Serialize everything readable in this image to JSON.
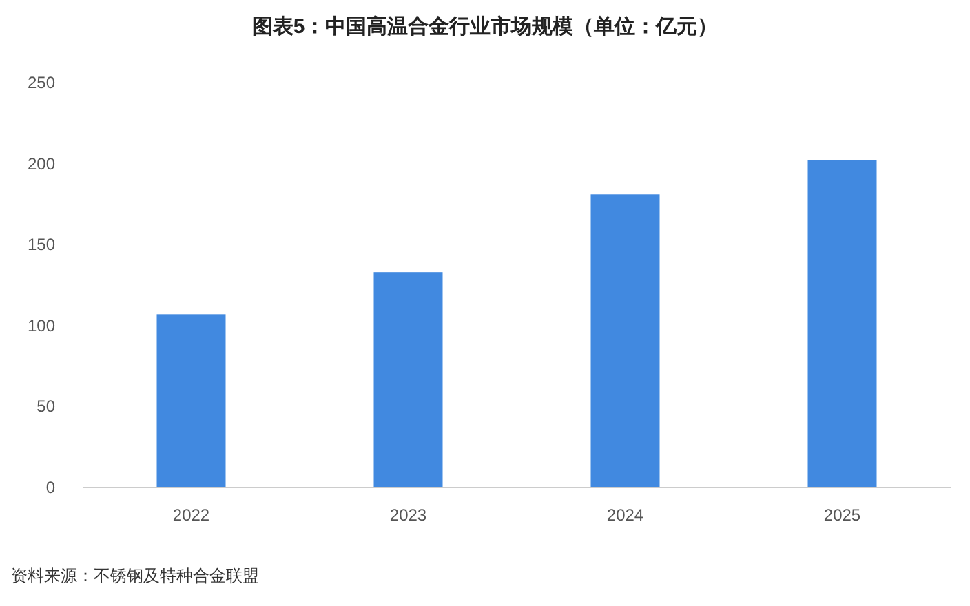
{
  "chart_data": {
    "type": "bar",
    "title": "图表5：中国高温合金行业市场规模（单位：亿元）",
    "categories": [
      "2022",
      "2023",
      "2024",
      "2025"
    ],
    "values": [
      107,
      133,
      181,
      202
    ],
    "color": "#4189e0",
    "ylim": [
      0,
      250
    ],
    "yticks": [
      0,
      50,
      100,
      150,
      200,
      250
    ],
    "grid": false,
    "annotations": [
      "资料来源：不锈钢及特种合金联盟"
    ]
  }
}
